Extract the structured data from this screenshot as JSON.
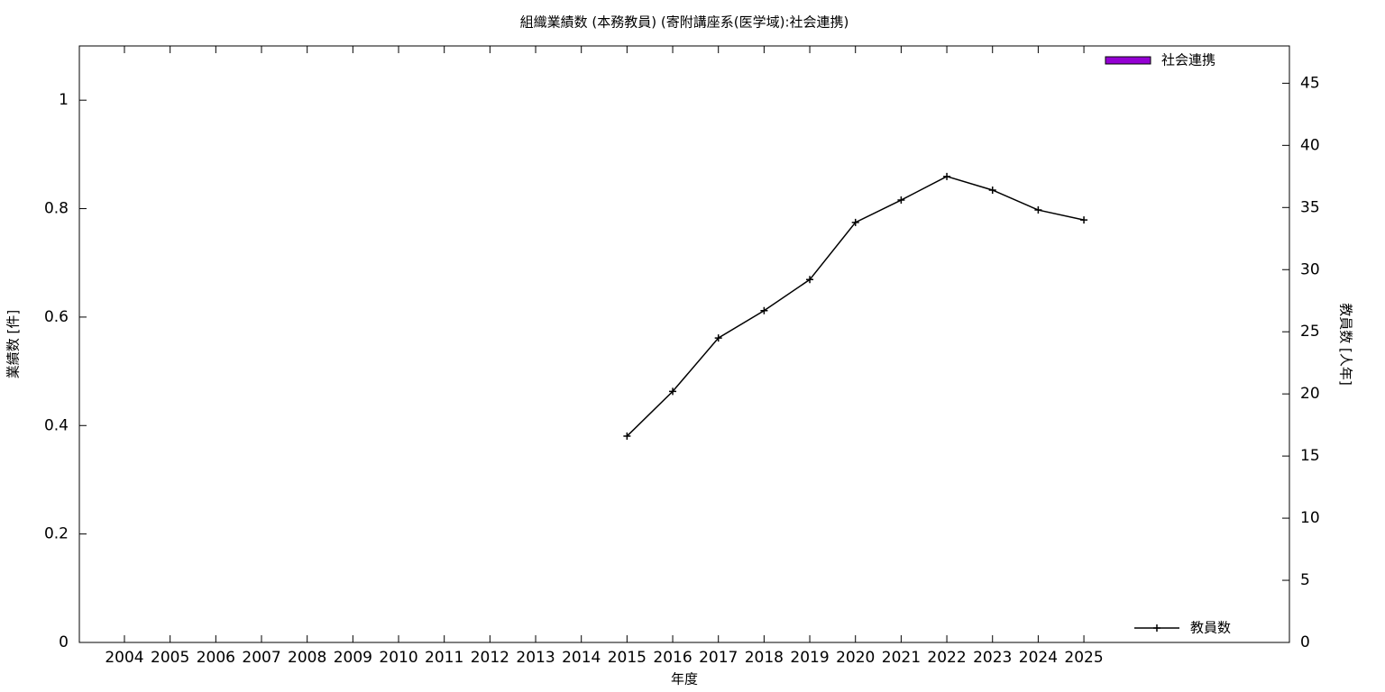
{
  "chart_data": {
    "type": "combo",
    "title": "組織業績数 (本務教員) (寄附講座系(医学域):社会連携)",
    "x_label": "年度",
    "y_label": "業績数 [件]",
    "y2_label": "教員数 [人年]",
    "categories": [
      "2004",
      "2005",
      "2006",
      "2007",
      "2008",
      "2009",
      "2010",
      "2011",
      "2012",
      "2013",
      "2014",
      "2015",
      "2016",
      "2017",
      "2018",
      "2019",
      "2020",
      "2021",
      "2022",
      "2023",
      "2024",
      "2025"
    ],
    "series": [
      {
        "name": "社会連携",
        "type": "bar",
        "color": "#9400d3",
        "values": [
          0,
          0,
          0,
          0,
          0,
          0,
          0,
          0,
          0,
          0,
          0,
          0,
          0,
          0,
          0,
          0,
          0,
          0,
          0,
          0,
          0,
          0
        ]
      },
      {
        "name": "教員数",
        "type": "line",
        "axis": "y2",
        "color": "#000000",
        "values": [
          null,
          null,
          null,
          null,
          null,
          null,
          null,
          null,
          null,
          null,
          null,
          16.6,
          20.2,
          24.5,
          26.7,
          29.2,
          33.8,
          35.6,
          37.5,
          36.4,
          34.8,
          34.0
        ]
      }
    ],
    "ylim": [
      0,
      1.1
    ],
    "yticks": [
      0,
      0.2,
      0.4,
      0.6,
      0.8,
      1
    ],
    "y2lim": [
      0,
      48
    ],
    "y2ticks": [
      0,
      5,
      10,
      15,
      20,
      25,
      30,
      35,
      40,
      45
    ]
  }
}
